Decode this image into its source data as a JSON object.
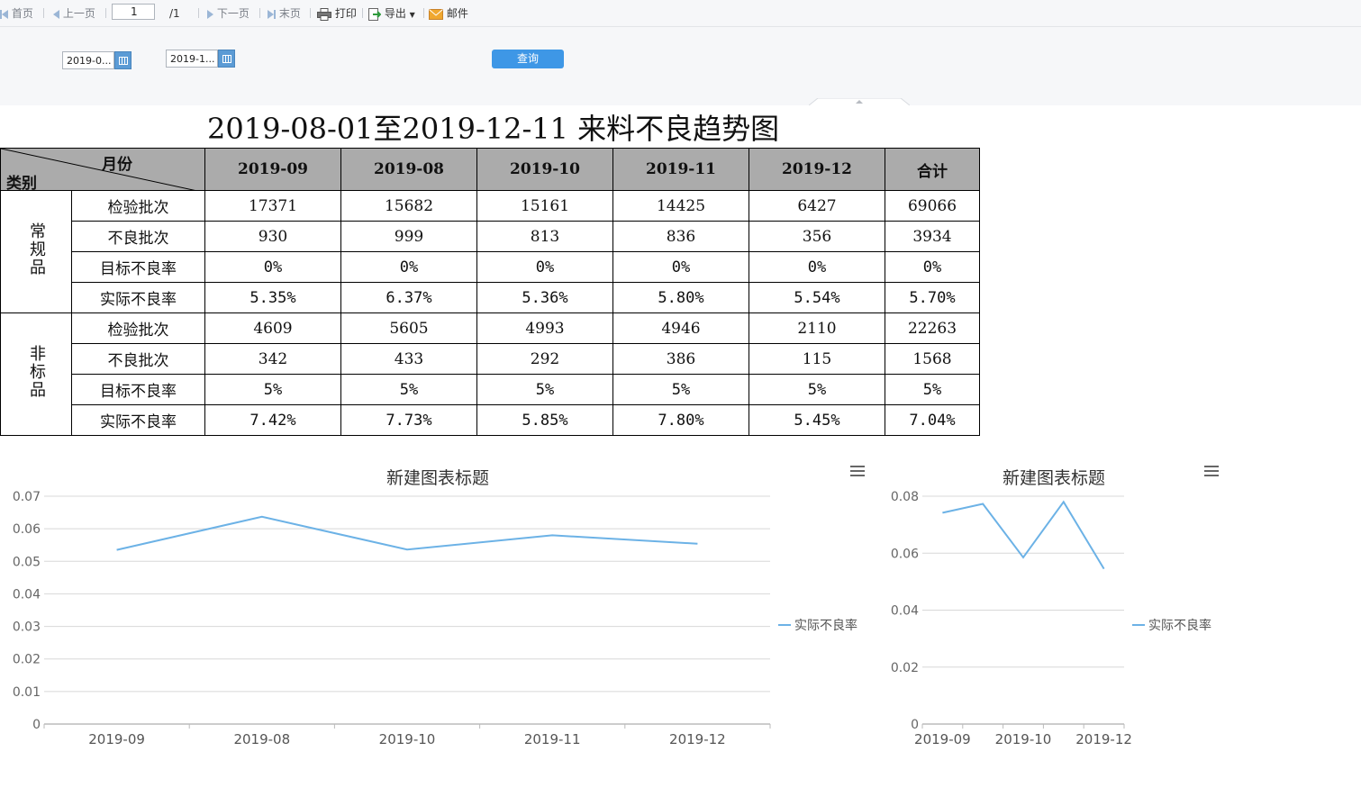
{
  "toolbar": {
    "first": "首页",
    "prev": "上一页",
    "page_value": "1",
    "page_total": "/1",
    "next": "下一页",
    "last": "末页",
    "print": "打印",
    "export": "导出",
    "mail": "邮件"
  },
  "params": {
    "start_date": "2019-0...",
    "end_date": "2019-1...",
    "query_label": "查询"
  },
  "report": {
    "title": "2019-08-01至2019-12-11 来料不良趋势图",
    "header_month": "月份",
    "header_category": "类别",
    "columns": [
      "2019-09",
      "2019-08",
      "2019-10",
      "2019-11",
      "2019-12",
      "合计"
    ],
    "groups": [
      {
        "name": "常规品",
        "rows": [
          {
            "label": "检验批次",
            "cells": [
              "17371",
              "15682",
              "15161",
              "14425",
              "6427",
              "69066"
            ]
          },
          {
            "label": "不良批次",
            "cells": [
              "930",
              "999",
              "813",
              "836",
              "356",
              "3934"
            ]
          },
          {
            "label": "目标不良率",
            "cells": [
              "0%",
              "0%",
              "0%",
              "0%",
              "0%",
              "0%"
            ]
          },
          {
            "label": "实际不良率",
            "cells": [
              "5.35%",
              "6.37%",
              "5.36%",
              "5.80%",
              "5.54%",
              "5.70%"
            ]
          }
        ]
      },
      {
        "name": "非标品",
        "rows": [
          {
            "label": "检验批次",
            "cells": [
              "4609",
              "5605",
              "4993",
              "4946",
              "2110",
              "22263"
            ]
          },
          {
            "label": "不良批次",
            "cells": [
              "342",
              "433",
              "292",
              "386",
              "115",
              "1568"
            ]
          },
          {
            "label": "目标不良率",
            "cells": [
              "5%",
              "5%",
              "5%",
              "5%",
              "5%",
              "5%"
            ]
          },
          {
            "label": "实际不良率",
            "cells": [
              "7.42%",
              "7.73%",
              "5.85%",
              "7.80%",
              "5.45%",
              "7.04%"
            ]
          }
        ]
      }
    ]
  },
  "colors": {
    "line": "#6cb2e6",
    "header_bg": "#ababab",
    "query_button": "#3e97e6"
  },
  "chart_data": [
    {
      "type": "line",
      "title": "新建图表标题",
      "x": [
        "2019-09",
        "2019-08",
        "2019-10",
        "2019-11",
        "2019-12"
      ],
      "series": [
        {
          "name": "实际不良率",
          "values": [
            0.0535,
            0.0637,
            0.0536,
            0.058,
            0.0554
          ]
        }
      ],
      "ylim": [
        0,
        0.07
      ],
      "yticks": [
        "0",
        "0.01",
        "0.02",
        "0.03",
        "0.04",
        "0.05",
        "0.06",
        "0.07"
      ],
      "grid": true,
      "legend": "right"
    },
    {
      "type": "line",
      "title": "新建图表标题",
      "x_labels": [
        "2019-09",
        "2019-10",
        "2019-12"
      ],
      "points": [
        0.0742,
        0.0773,
        0.0585,
        0.078,
        0.0545
      ],
      "series": [
        {
          "name": "实际不良率",
          "values": [
            0.0742,
            0.0773,
            0.0585,
            0.078,
            0.0545
          ]
        }
      ],
      "ylim": [
        0,
        0.08
      ],
      "yticks": [
        "0",
        "0.02",
        "0.04",
        "0.06",
        "0.08"
      ],
      "grid": true,
      "legend": "right"
    }
  ]
}
